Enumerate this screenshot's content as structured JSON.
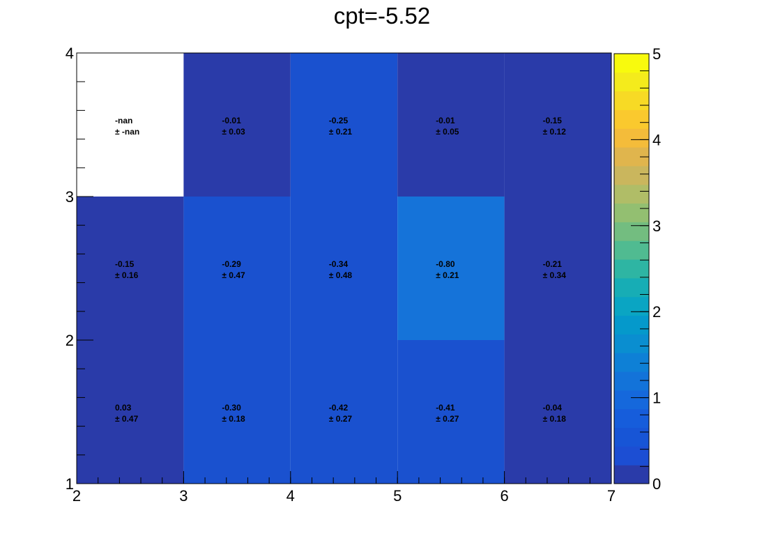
{
  "chart_data": {
    "type": "heatmap",
    "title": "cpt=-5.52",
    "xlabel": "",
    "ylabel": "",
    "x_edges": [
      2,
      3,
      4,
      5,
      6,
      7
    ],
    "y_edges": [
      1,
      2,
      3,
      4
    ],
    "x_ticks": [
      "2",
      "3",
      "4",
      "5",
      "6",
      "7"
    ],
    "y_ticks": [
      "1",
      "2",
      "3",
      "4"
    ],
    "zlim": [
      0,
      5
    ],
    "z_ticks": [
      "0",
      "1",
      "2",
      "3",
      "4",
      "5"
    ],
    "cells": [
      {
        "x": 2.5,
        "y": 1.5,
        "value": 0.03,
        "error": 0.47,
        "value_text": "0.03",
        "error_text": "± 0.47"
      },
      {
        "x": 3.5,
        "y": 1.5,
        "value": -0.3,
        "error": 0.18,
        "value_text": "-0.30",
        "error_text": "± 0.18"
      },
      {
        "x": 4.5,
        "y": 1.5,
        "value": -0.42,
        "error": 0.27,
        "value_text": "-0.42",
        "error_text": "± 0.27"
      },
      {
        "x": 5.5,
        "y": 1.5,
        "value": -0.41,
        "error": 0.27,
        "value_text": "-0.41",
        "error_text": "± 0.27"
      },
      {
        "x": 6.5,
        "y": 1.5,
        "value": -0.04,
        "error": 0.18,
        "value_text": "-0.04",
        "error_text": "± 0.18"
      },
      {
        "x": 2.5,
        "y": 2.5,
        "value": -0.15,
        "error": 0.16,
        "value_text": "-0.15",
        "error_text": "± 0.16"
      },
      {
        "x": 3.5,
        "y": 2.5,
        "value": -0.29,
        "error": 0.47,
        "value_text": "-0.29",
        "error_text": "± 0.47"
      },
      {
        "x": 4.5,
        "y": 2.5,
        "value": -0.34,
        "error": 0.48,
        "value_text": "-0.34",
        "error_text": "± 0.48"
      },
      {
        "x": 5.5,
        "y": 2.5,
        "value": -0.8,
        "error": 0.21,
        "value_text": "-0.80",
        "error_text": "± 0.21"
      },
      {
        "x": 6.5,
        "y": 2.5,
        "value": -0.21,
        "error": 0.34,
        "value_text": "-0.21",
        "error_text": "± 0.34"
      },
      {
        "x": 2.5,
        "y": 3.5,
        "value": null,
        "error": null,
        "value_text": "-nan",
        "error_text": "± -nan"
      },
      {
        "x": 3.5,
        "y": 3.5,
        "value": -0.01,
        "error": 0.03,
        "value_text": "-0.01",
        "error_text": "± 0.03"
      },
      {
        "x": 4.5,
        "y": 3.5,
        "value": -0.25,
        "error": 0.21,
        "value_text": "-0.25",
        "error_text": "± 0.21"
      },
      {
        "x": 5.5,
        "y": 3.5,
        "value": -0.01,
        "error": 0.05,
        "value_text": "-0.01",
        "error_text": "± 0.05"
      },
      {
        "x": 6.5,
        "y": 3.5,
        "value": -0.15,
        "error": 0.12,
        "value_text": "-0.15",
        "error_text": "± 0.12"
      }
    ],
    "palette": [
      "#2a3ba9",
      "#1c4ed3",
      "#1755d6",
      "#165ddb",
      "#1568dc",
      "#1373d9",
      "#0e80d6",
      "#0a8ed0",
      "#0599cb",
      "#0aa5c3",
      "#17adb5",
      "#2eb5a3",
      "#50bb91",
      "#73bd80",
      "#93bf71",
      "#b0bd67",
      "#cab65d",
      "#e0b54d",
      "#f4bc3a",
      "#fac92e",
      "#f7da25",
      "#f4eb1c",
      "#f8fa0d"
    ],
    "cell_colors": {
      "r1": [
        "#2a3ba9",
        "#1a51cf",
        "#1a51cf",
        "#1a51cf",
        "#2a3ba9"
      ],
      "r2": [
        "#2a3ba9",
        "#1a51cf",
        "#1a51cf",
        "#1573d9",
        "#2a3ba9"
      ],
      "r3": [
        "#ffffff",
        "#2a3ba9",
        "#1a51cf",
        "#2a3ba9",
        "#2a3ba9"
      ]
    },
    "grid": false,
    "legend": "none"
  }
}
